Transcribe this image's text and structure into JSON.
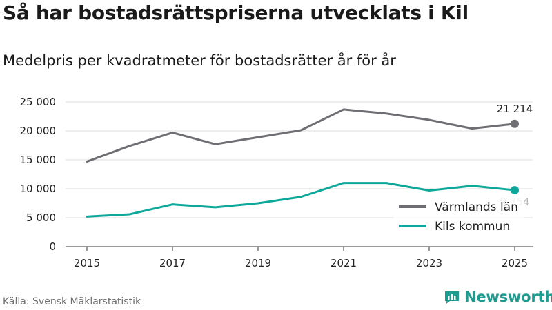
{
  "title": "Så har bostadsrättspriserna utvecklats i Kil",
  "subtitle": "Medelpris per kvadratmeter för bostadsrätter år för år",
  "source": "Källa: Svensk Mäklarstatistik",
  "brand": {
    "name": "Newsworthy",
    "icon": "newsworthy-logo-icon",
    "color": "#1f9c8f"
  },
  "chart_data": {
    "type": "line",
    "title": "Så har bostadsrättspriserna utvecklats i Kil",
    "xlabel": "",
    "ylabel": "",
    "x": [
      2015,
      2016,
      2017,
      2018,
      2019,
      2020,
      2021,
      2022,
      2023,
      2024,
      2025
    ],
    "xticks": [
      "2015",
      "2017",
      "2019",
      "2021",
      "2023",
      "2025"
    ],
    "yticks": [
      "0",
      "5 000",
      "10 000",
      "15 000",
      "20 000",
      "25 000"
    ],
    "ylim": [
      0,
      25000
    ],
    "grid": true,
    "legend": "bottom-right",
    "series": [
      {
        "name": "Värmlands län",
        "color": "#6e6e73",
        "values": [
          14700,
          17400,
          19700,
          17700,
          18900,
          20100,
          23700,
          23000,
          21900,
          20400,
          21214
        ],
        "end_label": "21 214"
      },
      {
        "name": "Kils kommun",
        "color": "#0ea89a",
        "values": [
          5200,
          5600,
          7300,
          6800,
          7500,
          8600,
          11000,
          11000,
          9700,
          10500,
          9754
        ],
        "end_label": "9 754"
      }
    ]
  }
}
